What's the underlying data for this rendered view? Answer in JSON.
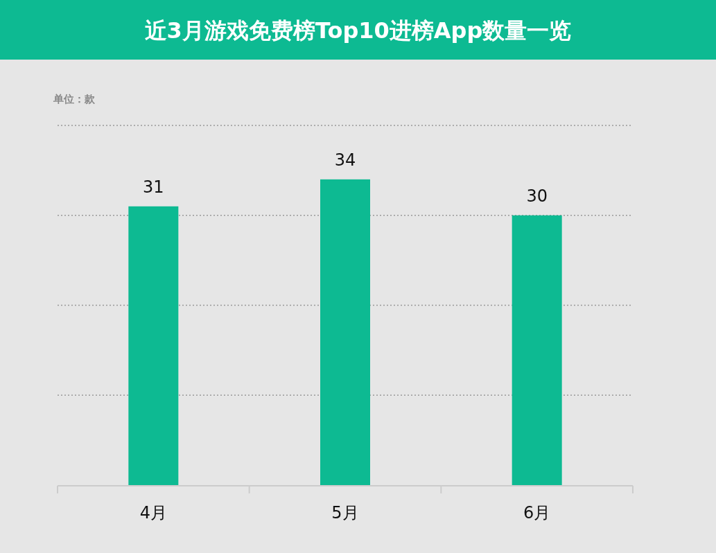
{
  "chart_data": {
    "type": "bar",
    "title": "近3月游戏免费榜Top10进榜App数量一览",
    "ylabel": "单位：款",
    "categories": [
      "4月",
      "5月",
      "6月"
    ],
    "values": [
      31,
      34,
      30
    ],
    "color": "#0dba92",
    "ylim": [
      0,
      40
    ],
    "yticks": [
      {
        "value": 0,
        "label": null
      },
      {
        "value": 10,
        "label": null
      },
      {
        "value": 20,
        "label": null
      },
      {
        "value": 30,
        "label": null
      },
      {
        "value": 40,
        "label": null
      }
    ],
    "grid": "y",
    "data_labels": true,
    "tick_labels": "x"
  }
}
